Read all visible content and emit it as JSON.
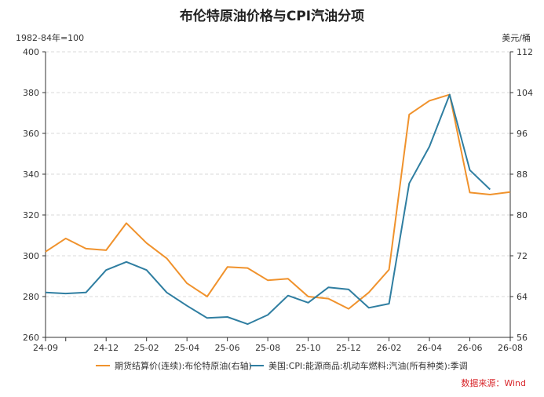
{
  "chart_data": {
    "type": "line",
    "title": "布伦特原油价格与CPI汽油分项",
    "left_unit": "1982-84年=100",
    "right_unit": "美元/桶",
    "source": "数据来源：Wind",
    "x_labels": [
      "24-09",
      "24-12",
      "25-02",
      "25-04",
      "25-06",
      "25-08",
      "25-10",
      "25-12",
      "26-02",
      "26-04",
      "26-06",
      "26-08"
    ],
    "y_left": {
      "min": 260,
      "max": 400,
      "ticks": [
        260,
        280,
        300,
        320,
        340,
        360,
        380,
        400
      ]
    },
    "y_right": {
      "min": 56,
      "max": 112,
      "ticks": [
        56,
        64,
        72,
        80,
        88,
        96,
        104,
        112
      ]
    },
    "grid": "horizontal-dashed",
    "legend_position": "bottom",
    "series": [
      {
        "name": "期货结算价(连续):布伦特原油(右轴)",
        "axis": "right",
        "color": "#f0922c",
        "values": [
          72.8,
          75.4,
          73.4,
          73.1,
          78.4,
          74.5,
          71.5,
          66.6,
          64.0,
          69.8,
          69.6,
          67.2,
          67.5,
          64.0,
          63.6,
          61.6,
          64.8,
          69.3,
          99.7,
          102.4,
          103.6,
          84.4,
          84.0,
          84.5
        ]
      },
      {
        "name": "美国:CPI:能源商品:机动车燃料:汽油(所有种类):季调",
        "axis": "left",
        "color": "#2f7ea1",
        "values": [
          282,
          281.5,
          282,
          293,
          297,
          293,
          282,
          275.5,
          269.5,
          270,
          266.5,
          271,
          280.5,
          277,
          284.5,
          283.5,
          274.5,
          276.5,
          335.5,
          353.5,
          379,
          342,
          332.5,
          null
        ]
      }
    ]
  }
}
